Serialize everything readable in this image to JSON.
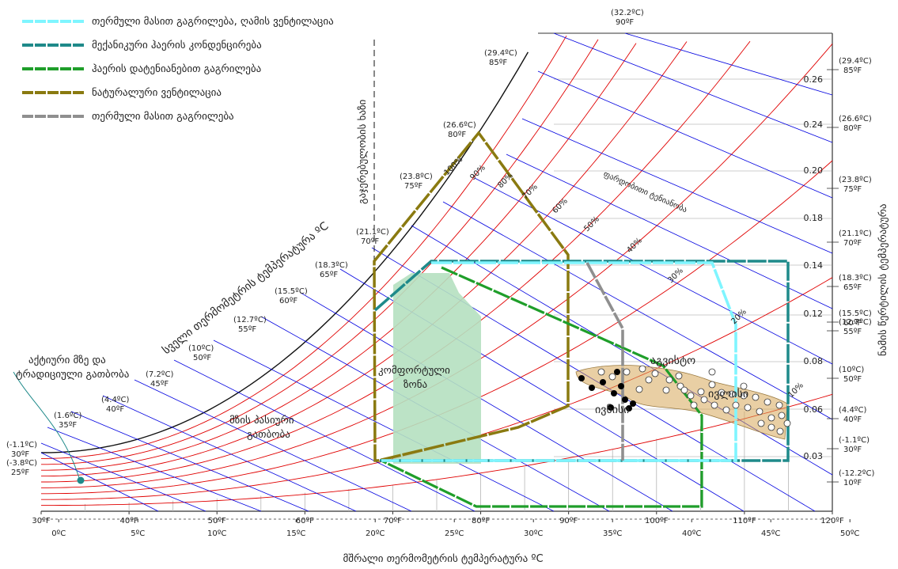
{
  "chart_data": {
    "type": "psychrometric",
    "xlabel": "მშრალი თერმომეტრის ტემპერატურა ºC",
    "ylabel_right": "ნამის წერტილის ტემპერატურა",
    "wetbulb_label": "სველი თერმომეტრის ტემპერატურა ºC",
    "saturation_label": "გაჯერებულობის ხაზი",
    "rh_label": "ფარდობითი ტენიანობა",
    "x_f_ticks": [
      "30ºF",
      "40ºF",
      "50ºF",
      "60ºF",
      "70ºF",
      "80ºF",
      "90ºF",
      "100ºF",
      "110ºF",
      "120ºF"
    ],
    "x_c_ticks": [
      "0ºC",
      "5ºC",
      "10ºC",
      "15ºC",
      "20ºC",
      "25ºC",
      "30ºC",
      "35ºC",
      "40ºC",
      "45ºC",
      "50ºC"
    ],
    "x_range_f": [
      30,
      120
    ],
    "humidity_ratio_ticks": [
      "0.26",
      "0.24",
      "0.20",
      "0.18",
      "0.14",
      "0.12",
      "0.08",
      "0.06",
      "0.03"
    ],
    "right_dewpoint_labels": [
      {
        "c": "(29.4ºC)",
        "f": "85ºF"
      },
      {
        "c": "(26.6ºC)",
        "f": "80ºF"
      },
      {
        "c": "(23.8ºC)",
        "f": "75ºF"
      },
      {
        "c": "(21.1ºC)",
        "f": "70ºF"
      },
      {
        "c": "(18.3ºC)",
        "f": "65ºF"
      },
      {
        "c": "(15.5ºC)",
        "f": "60ºF"
      },
      {
        "c": "(12.7ºC)",
        "f": "55ºF"
      },
      {
        "c": "(10ºC)",
        "f": "50ºF"
      },
      {
        "c": "(4.4ºC)",
        "f": "40ºF"
      },
      {
        "c": "(-1.1ºC)",
        "f": "30ºF"
      },
      {
        "c": "(-12.2ºC)",
        "f": "10ºF"
      }
    ],
    "saturation_temp_labels": [
      {
        "c": "(-3.8ºC)",
        "f": "25ºF"
      },
      {
        "c": "(-1.1ºC)",
        "f": "30ºF"
      },
      {
        "c": "(1.6ºC)",
        "f": "35ºF"
      },
      {
        "c": "(4.4ºC)",
        "f": "40ºF"
      },
      {
        "c": "(7.2ºC)",
        "f": "45ºF"
      },
      {
        "c": "(10ºC)",
        "f": "50ºF"
      },
      {
        "c": "(12.7ºC)",
        "f": "55ºF"
      },
      {
        "c": "(15.5ºC)",
        "f": "60ºF"
      },
      {
        "c": "(18.3ºC)",
        "f": "65ºF"
      },
      {
        "c": "(21.1ºC)",
        "f": "70ºF"
      },
      {
        "c": "(23.8ºC)",
        "f": "75ºF"
      },
      {
        "c": "(26.6ºC)",
        "f": "80ºF"
      },
      {
        "c": "(29.4ºC)",
        "f": "85ºF"
      },
      {
        "c": "(32.2ºC)",
        "f": "90ºF"
      }
    ],
    "rh_labels": [
      "100%",
      "90%",
      "80%",
      "70%",
      "60%",
      "50%",
      "40%",
      "30%",
      "20%",
      "10%"
    ],
    "legend": [
      {
        "label": "თერმული მასით გაგრილება, ღამის ვენტილაცია",
        "color": "#7ff5ff"
      },
      {
        "label": "მექანიკური ჰაერის კონდენცირება",
        "color": "#1f8a8a"
      },
      {
        "label": "ჰაერის დატენიანებით გაგრილება",
        "color": "#1f9e2a"
      },
      {
        "label": "ნატურალური ვენტილაცია",
        "color": "#8a7a10"
      },
      {
        "label": "თერმული მასით გაგრილება",
        "color": "#8f8f8f"
      }
    ],
    "annotations": {
      "comfort_zone": [
        "კომფორტული",
        "ზონა"
      ],
      "passive_heating": [
        "მზის პასიური",
        "გათბობა"
      ],
      "active_solar": [
        "აქტიური მზე და",
        "ტრადიციული გათბობა"
      ],
      "august": "აგვისტო",
      "july": "ივლისი",
      "june": "ივნისი"
    },
    "dark_points": [
      [
        91,
        64
      ],
      [
        92,
        62
      ],
      [
        93,
        66
      ],
      [
        94,
        61
      ],
      [
        95,
        63
      ],
      [
        96,
        60
      ],
      [
        93,
        58
      ],
      [
        95,
        57
      ],
      [
        97,
        59
      ],
      [
        98,
        62
      ]
    ],
    "light_points": [
      [
        92,
        68
      ],
      [
        94,
        70
      ],
      [
        96,
        69
      ],
      [
        98,
        67
      ],
      [
        100,
        68
      ],
      [
        102,
        66
      ],
      [
        104,
        65
      ],
      [
        106,
        64
      ],
      [
        107,
        62
      ],
      [
        108,
        63
      ],
      [
        109,
        61
      ],
      [
        110,
        60
      ],
      [
        111,
        59
      ],
      [
        112,
        58
      ],
      [
        113,
        57
      ],
      [
        114,
        56
      ],
      [
        115,
        55
      ],
      [
        116,
        54
      ],
      [
        117,
        53
      ],
      [
        105,
        61
      ],
      [
        103,
        63
      ],
      [
        101,
        60
      ],
      [
        99,
        64
      ],
      [
        97,
        66
      ],
      [
        95,
        65
      ],
      [
        110,
        57
      ],
      [
        112,
        55
      ],
      [
        114,
        59
      ],
      [
        116,
        57
      ],
      [
        118,
        56
      ]
    ]
  }
}
